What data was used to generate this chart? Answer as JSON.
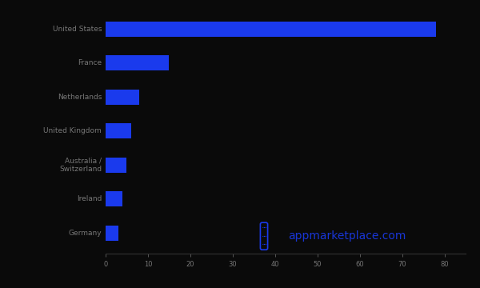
{
  "categories": [
    "Germany",
    "Ireland",
    "Australia /\nSwitzerland",
    "United Kingdom",
    "Netherlands",
    "France",
    "United States"
  ],
  "values": [
    3,
    4,
    5,
    6,
    8,
    15,
    78
  ],
  "bar_color": "#1a3aed",
  "background_color": "#0a0a0a",
  "text_color": "#777777",
  "xlim": [
    0,
    85
  ],
  "xticks": [
    0,
    10,
    20,
    30,
    40,
    50,
    60,
    70,
    80
  ],
  "watermark_text": "appmarketplace.com",
  "bar_height": 0.45,
  "figsize": [
    6.0,
    3.6
  ],
  "dpi": 100,
  "label_fontsize": 6.5,
  "tick_fontsize": 6.0
}
